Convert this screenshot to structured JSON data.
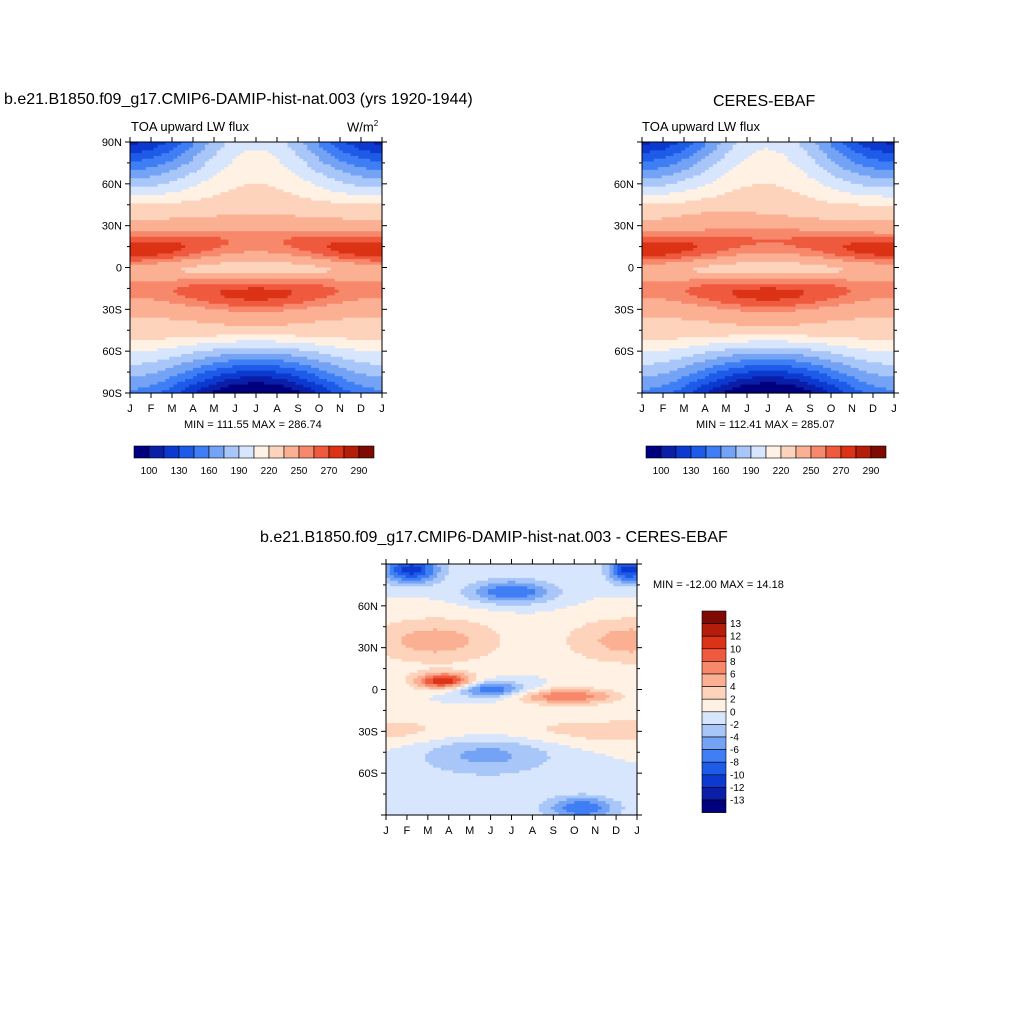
{
  "colors": {
    "flux_scale": [
      "#00007f",
      "#0a1ea8",
      "#0c3ad0",
      "#1e5be8",
      "#3f7ef5",
      "#74a2f5",
      "#a9c6f8",
      "#d7e6fc",
      "#fff1e4",
      "#fdd3bb",
      "#fbb093",
      "#f7886b",
      "#ef5a3f",
      "#dc3215",
      "#b31d0a",
      "#7f0a04"
    ],
    "diff_scale": [
      "#00007f",
      "#0a1ea8",
      "#0c3ad0",
      "#1e5be8",
      "#3f7ef5",
      "#74a2f5",
      "#a9c6f8",
      "#d7e6fc",
      "#fff1e4",
      "#fdd3bb",
      "#fbb093",
      "#f7886b",
      "#ef5a3f",
      "#dc3215",
      "#b31d0a",
      "#7f0a04"
    ]
  },
  "panels": {
    "model": {
      "title": "b.e21.B1850.f09_g17.CMIP6-DAMIP-hist-nat.003 (yrs 1920-1944)",
      "left_label": "TOA upward LW flux",
      "units": "W/m",
      "units_sup": "2",
      "stats": "MIN = 111.55 MAX = 286.74"
    },
    "obs": {
      "title": "CERES-EBAF",
      "left_label": "TOA upward LW flux",
      "stats": "MIN = 112.41 MAX = 285.07"
    },
    "diff": {
      "title": "b.e21.B1850.f09_g17.CMIP6-DAMIP-hist-nat.003 - CERES-EBAF",
      "stats": "MIN = -12.00 MAX =  14.18"
    }
  },
  "chart_data": [
    {
      "type": "heatmap",
      "title": "b.e21.B1850.f09_g17.CMIP6-DAMIP-hist-nat.003 (yrs 1920-1944)",
      "x_ticks": [
        "J",
        "F",
        "M",
        "A",
        "M",
        "J",
        "J",
        "A",
        "S",
        "O",
        "N",
        "D",
        "J"
      ],
      "y_ticks": [
        "90N",
        "60N",
        "30N",
        "0",
        "30S",
        "60S",
        "90S"
      ],
      "ylim": [
        -90,
        90
      ],
      "colorbar_labels": [
        "100",
        "130",
        "160",
        "190",
        "220",
        "250",
        "270",
        "290"
      ],
      "min": 111.55,
      "max": 286.74
    },
    {
      "type": "heatmap",
      "title": "CERES-EBAF",
      "x_ticks": [
        "J",
        "F",
        "M",
        "A",
        "M",
        "J",
        "J",
        "A",
        "S",
        "O",
        "N",
        "D",
        "J"
      ],
      "y_ticks": [
        "60N",
        "30N",
        "0",
        "30S",
        "60S"
      ],
      "ylim": [
        -90,
        90
      ],
      "colorbar_labels": [
        "100",
        "130",
        "160",
        "190",
        "220",
        "250",
        "270",
        "290"
      ],
      "min": 112.41,
      "max": 285.07
    },
    {
      "type": "heatmap",
      "title": "b.e21.B1850.f09_g17.CMIP6-DAMIP-hist-nat.003 - CERES-EBAF",
      "x_ticks": [
        "J",
        "F",
        "M",
        "A",
        "M",
        "J",
        "J",
        "A",
        "S",
        "O",
        "N",
        "D",
        "J"
      ],
      "y_ticks": [
        "60N",
        "30N",
        "0",
        "30S",
        "60S"
      ],
      "ylim": [
        -90,
        90
      ],
      "colorbar_labels": [
        "13",
        "12",
        "10",
        "8",
        "6",
        "4",
        "2",
        "0",
        "-2",
        "-4",
        "-6",
        "-8",
        "-10",
        "-12",
        "-13"
      ],
      "min": -12.0,
      "max": 14.18
    }
  ]
}
